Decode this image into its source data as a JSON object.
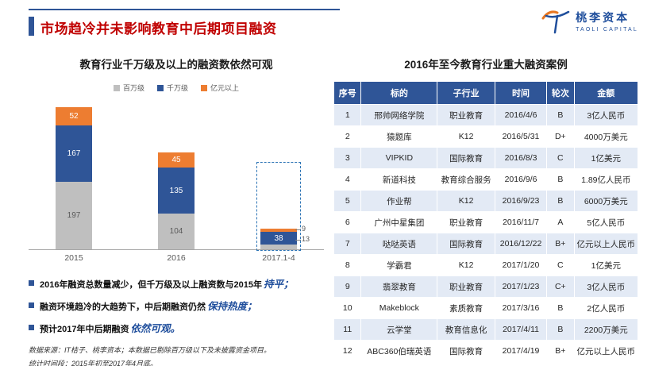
{
  "header": {
    "title": "市场趋冷并未影响教育中后期项目融资",
    "logo": {
      "cn": "桃李资本",
      "en": "TAOLI CAPITAL"
    }
  },
  "colors": {
    "title_red": "#C00000",
    "brand_blue": "#1F4E9C",
    "bar_blue": "#2F5597",
    "bar_orange": "#ED7D31",
    "bar_gray": "#BFBFBF",
    "table_header_blue": "#2F5597",
    "table_band": "#E3EAF5",
    "highlight_dash": "#2E75B6"
  },
  "chart_data": {
    "type": "bar",
    "stacked": true,
    "title": "教育行业千万级及以上的融资数依然可观",
    "categories": [
      "2015",
      "2016",
      "2017.1-4"
    ],
    "series": [
      {
        "name": "百万级",
        "color": "#BFBFBF",
        "values": [
          197,
          104,
          13
        ]
      },
      {
        "name": "千万级",
        "color": "#2F5597",
        "values": [
          167,
          135,
          38
        ]
      },
      {
        "name": "亿元以上",
        "color": "#ED7D31",
        "values": [
          52,
          45,
          9
        ]
      }
    ],
    "ylim": [
      0,
      450
    ],
    "grid": false,
    "legend_position": "top",
    "highlight_category": "2017.1-4",
    "callouts": [
      "9",
      "13"
    ]
  },
  "bullets": [
    {
      "text": "2016年融资总数量减少，但千万级及以上融资数与2015年",
      "em": "持平；"
    },
    {
      "text": "融资环境趋冷的大趋势下，中后期融资仍然",
      "em": "保持热度；"
    },
    {
      "text": "预计2017年中后期融资",
      "em": "依然可观。"
    }
  ],
  "footnotes": [
    "数据来源：IT桔子、桃李资本；本数据已剔除百万级以下及未披露资金项目。",
    "统计时间段：2015年初至2017年4月底。"
  ],
  "table": {
    "title": "2016年至今教育行业重大融资案例",
    "headers": [
      "序号",
      "标的",
      "子行业",
      "时间",
      "轮次",
      "金额"
    ],
    "rows": [
      [
        "1",
        "邢帅网络学院",
        "职业教育",
        "2016/4/6",
        "B",
        "3亿人民币"
      ],
      [
        "2",
        "猿题库",
        "K12",
        "2016/5/31",
        "D+",
        "4000万美元"
      ],
      [
        "3",
        "VIPKID",
        "国际教育",
        "2016/8/3",
        "C",
        "1亿美元"
      ],
      [
        "4",
        "新道科技",
        "教育综合服务",
        "2016/9/6",
        "B",
        "1.89亿人民币"
      ],
      [
        "5",
        "作业帮",
        "K12",
        "2016/9/23",
        "B",
        "6000万美元"
      ],
      [
        "6",
        "广州中星集团",
        "职业教育",
        "2016/11/7",
        "A",
        "5亿人民币"
      ],
      [
        "7",
        "哒哒英语",
        "国际教育",
        "2016/12/22",
        "B+",
        "亿元以上人民币"
      ],
      [
        "8",
        "学霸君",
        "K12",
        "2017/1/20",
        "C",
        "1亿美元"
      ],
      [
        "9",
        "翡翠教育",
        "职业教育",
        "2017/1/23",
        "C+",
        "3亿人民币"
      ],
      [
        "10",
        "Makeblock",
        "素质教育",
        "2017/3/16",
        "B",
        "2亿人民币"
      ],
      [
        "11",
        "云学堂",
        "教育信息化",
        "2017/4/11",
        "B",
        "2200万美元"
      ],
      [
        "12",
        "ABC360伯瑞英语",
        "国际教育",
        "2017/4/19",
        "B+",
        "亿元以上人民币"
      ]
    ]
  }
}
